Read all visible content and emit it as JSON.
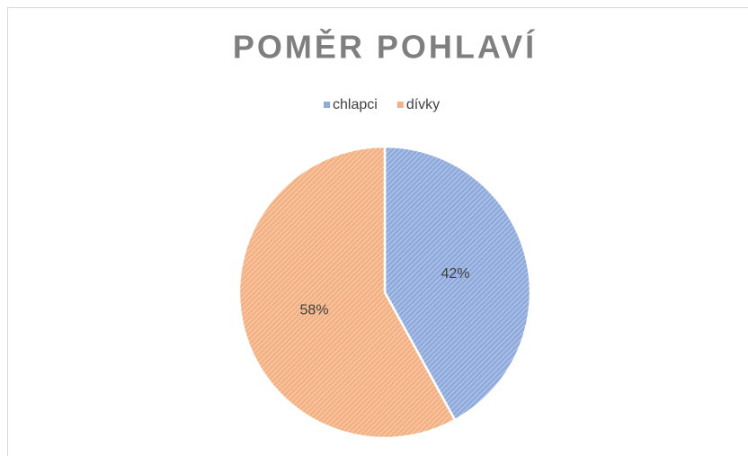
{
  "chart_data": {
    "type": "pie",
    "title": "POMĚR POHLAVÍ",
    "categories": [
      "chlapci",
      "dívky"
    ],
    "values": [
      42,
      58
    ],
    "value_labels": [
      "42%",
      "58%"
    ],
    "colors": [
      "#8faadc",
      "#f4b183"
    ],
    "legend": "top"
  }
}
